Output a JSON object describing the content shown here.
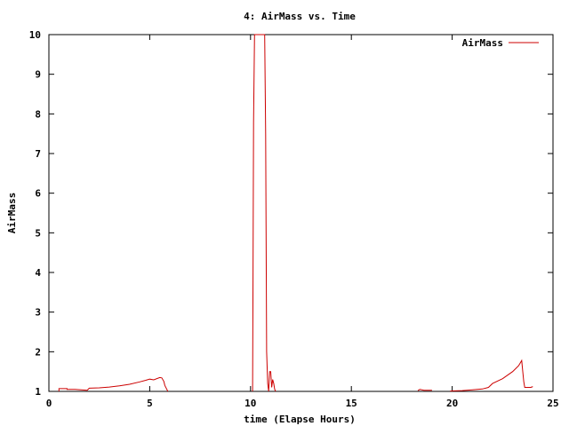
{
  "chart_data": {
    "type": "line",
    "title": "4: AirMass vs. Time",
    "xlabel": "time (Elapse Hours)",
    "ylabel": "AirMass",
    "xlim": [
      0,
      25
    ],
    "ylim": [
      1,
      10
    ],
    "xticks": [
      0,
      5,
      10,
      15,
      20,
      25
    ],
    "yticks": [
      1,
      2,
      3,
      4,
      5,
      6,
      7,
      8,
      9,
      10
    ],
    "legend_position": "top-right",
    "colors": {
      "series": "#cc0000",
      "axes": "#000000"
    },
    "series": [
      {
        "name": "AirMass",
        "segments": [
          [
            [
              0.5,
              1.0
            ],
            [
              0.5,
              1.07
            ],
            [
              0.9,
              1.07
            ],
            [
              0.9,
              1.05
            ],
            [
              1.3,
              1.05
            ],
            [
              1.6,
              1.04
            ],
            [
              1.9,
              1.03
            ],
            [
              2.0,
              1.08
            ],
            [
              2.5,
              1.09
            ],
            [
              3.0,
              1.11
            ],
            [
              3.5,
              1.14
            ],
            [
              4.0,
              1.18
            ],
            [
              4.5,
              1.24
            ],
            [
              4.8,
              1.28
            ],
            [
              5.0,
              1.31
            ],
            [
              5.2,
              1.29
            ],
            [
              5.5,
              1.35
            ],
            [
              5.6,
              1.34
            ],
            [
              5.7,
              1.25
            ],
            [
              5.75,
              1.15
            ],
            [
              5.85,
              1.05
            ],
            [
              5.9,
              1.0
            ]
          ],
          [
            [
              10.1,
              1.0
            ],
            [
              10.12,
              3.3
            ],
            [
              10.15,
              7.8
            ],
            [
              10.2,
              10.0
            ],
            [
              10.7,
              10.0
            ],
            [
              10.75,
              7.5
            ],
            [
              10.78,
              4.0
            ],
            [
              10.8,
              2.0
            ],
            [
              10.85,
              1.2
            ],
            [
              10.9,
              1.0
            ],
            [
              10.95,
              1.5
            ],
            [
              11.0,
              1.5
            ],
            [
              11.05,
              1.1
            ],
            [
              11.1,
              1.3
            ],
            [
              11.15,
              1.2
            ],
            [
              11.2,
              1.05
            ],
            [
              11.25,
              1.0
            ]
          ],
          [
            [
              18.3,
              1.02
            ],
            [
              18.4,
              1.05
            ],
            [
              18.6,
              1.03
            ],
            [
              19.0,
              1.03
            ]
          ],
          [
            [
              19.9,
              1.01
            ],
            [
              20.5,
              1.02
            ],
            [
              21.0,
              1.04
            ],
            [
              21.5,
              1.06
            ],
            [
              21.8,
              1.1
            ],
            [
              22.0,
              1.2
            ],
            [
              22.5,
              1.32
            ],
            [
              23.0,
              1.5
            ],
            [
              23.3,
              1.65
            ],
            [
              23.45,
              1.78
            ],
            [
              23.5,
              1.5
            ],
            [
              23.55,
              1.25
            ],
            [
              23.6,
              1.1
            ],
            [
              23.9,
              1.1
            ],
            [
              24.0,
              1.12
            ]
          ]
        ]
      }
    ]
  }
}
